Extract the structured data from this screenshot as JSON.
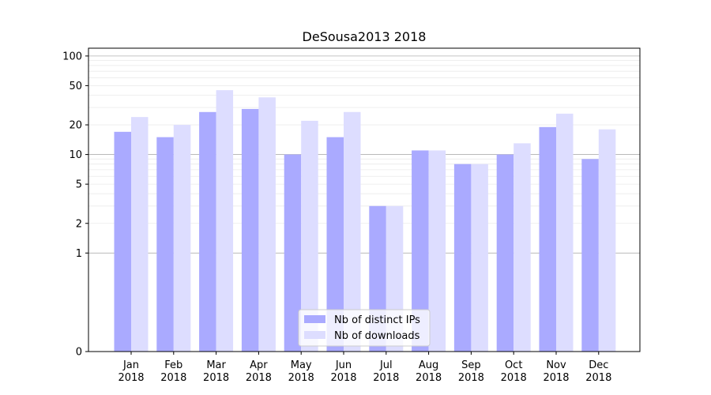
{
  "chart_data": {
    "type": "bar",
    "title": "DeSousa2013 2018",
    "xlabel": "",
    "ylabel": "",
    "y_scale": "symlog",
    "ylim": [
      0,
      120
    ],
    "yticks": [
      0,
      1,
      2,
      5,
      10,
      20,
      50,
      100
    ],
    "ytick_labels": [
      "0",
      "1",
      "2",
      "5",
      "10",
      "20",
      "50",
      "100"
    ],
    "categories": [
      {
        "month": "Jan",
        "year": "2018"
      },
      {
        "month": "Feb",
        "year": "2018"
      },
      {
        "month": "Mar",
        "year": "2018"
      },
      {
        "month": "Apr",
        "year": "2018"
      },
      {
        "month": "May",
        "year": "2018"
      },
      {
        "month": "Jun",
        "year": "2018"
      },
      {
        "month": "Jul",
        "year": "2018"
      },
      {
        "month": "Aug",
        "year": "2018"
      },
      {
        "month": "Sep",
        "year": "2018"
      },
      {
        "month": "Oct",
        "year": "2018"
      },
      {
        "month": "Nov",
        "year": "2018"
      },
      {
        "month": "Dec",
        "year": "2018"
      }
    ],
    "series": [
      {
        "name": "Nb of distinct IPs",
        "color": "#aaaaff",
        "values": [
          17,
          15,
          27,
          29,
          10,
          15,
          3,
          11,
          8,
          10,
          19,
          9
        ]
      },
      {
        "name": "Nb of downloads",
        "color": "#ddddff",
        "values": [
          24,
          20,
          45,
          38,
          22,
          27,
          3,
          11,
          8,
          13,
          26,
          18
        ]
      }
    ],
    "grid": true,
    "legend_position": "bottom-center"
  }
}
